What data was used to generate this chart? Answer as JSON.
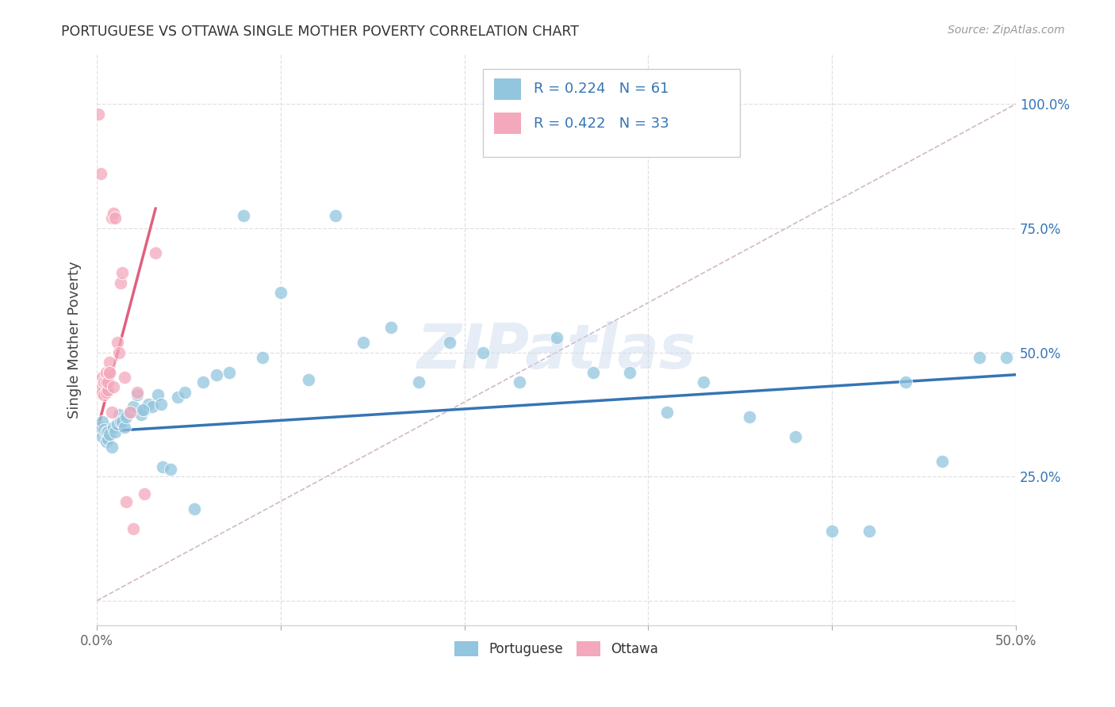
{
  "title": "PORTUGUESE VS OTTAWA SINGLE MOTHER POVERTY CORRELATION CHART",
  "source": "Source: ZipAtlas.com",
  "ylabel": "Single Mother Poverty",
  "xlim": [
    0.0,
    0.5
  ],
  "ylim": [
    -0.05,
    1.1
  ],
  "xtick_positions": [
    0.0,
    0.1,
    0.2,
    0.3,
    0.4,
    0.5
  ],
  "xticklabels": [
    "0.0%",
    "",
    "",
    "",
    "",
    "50.0%"
  ],
  "ytick_positions": [
    0.0,
    0.25,
    0.5,
    0.75,
    1.0
  ],
  "yticklabels_right": [
    "",
    "25.0%",
    "50.0%",
    "75.0%",
    "100.0%"
  ],
  "legend_line1": "R = 0.224   N = 61",
  "legend_line2": "R = 0.422   N = 33",
  "legend_label_blue": "Portuguese",
  "legend_label_pink": "Ottawa",
  "color_blue": "#92c5de",
  "color_pink": "#f4a8bc",
  "color_blue_line": "#3575b5",
  "color_pink_line": "#e0607e",
  "color_diag": "#d0b8c8",
  "color_text_blue": "#3575b5",
  "color_grid": "#e0e0e0",
  "watermark": "ZIPatlas",
  "blue_points_x": [
    0.001,
    0.002,
    0.003,
    0.003,
    0.004,
    0.005,
    0.005,
    0.006,
    0.006,
    0.007,
    0.008,
    0.009,
    0.01,
    0.011,
    0.012,
    0.013,
    0.014,
    0.015,
    0.016,
    0.018,
    0.02,
    0.022,
    0.024,
    0.026,
    0.028,
    0.03,
    0.033,
    0.036,
    0.04,
    0.044,
    0.048,
    0.053,
    0.058,
    0.065,
    0.072,
    0.08,
    0.09,
    0.1,
    0.115,
    0.13,
    0.145,
    0.16,
    0.175,
    0.192,
    0.21,
    0.23,
    0.25,
    0.27,
    0.29,
    0.31,
    0.33,
    0.355,
    0.38,
    0.4,
    0.42,
    0.44,
    0.46,
    0.48,
    0.495,
    0.025,
    0.035
  ],
  "blue_points_y": [
    0.345,
    0.35,
    0.33,
    0.36,
    0.345,
    0.34,
    0.32,
    0.34,
    0.325,
    0.335,
    0.31,
    0.35,
    0.34,
    0.355,
    0.375,
    0.36,
    0.36,
    0.35,
    0.37,
    0.38,
    0.39,
    0.415,
    0.375,
    0.385,
    0.395,
    0.39,
    0.415,
    0.27,
    0.265,
    0.41,
    0.42,
    0.185,
    0.44,
    0.455,
    0.46,
    0.775,
    0.49,
    0.62,
    0.445,
    0.775,
    0.52,
    0.55,
    0.44,
    0.52,
    0.5,
    0.44,
    0.53,
    0.46,
    0.46,
    0.38,
    0.44,
    0.37,
    0.33,
    0.14,
    0.14,
    0.44,
    0.28,
    0.49,
    0.49,
    0.385,
    0.395
  ],
  "pink_points_x": [
    0.001,
    0.001,
    0.002,
    0.002,
    0.003,
    0.003,
    0.003,
    0.004,
    0.004,
    0.005,
    0.005,
    0.005,
    0.006,
    0.006,
    0.007,
    0.007,
    0.007,
    0.008,
    0.008,
    0.009,
    0.009,
    0.01,
    0.011,
    0.012,
    0.013,
    0.014,
    0.015,
    0.016,
    0.018,
    0.02,
    0.022,
    0.026,
    0.032
  ],
  "pink_points_y": [
    0.98,
    0.42,
    0.86,
    0.42,
    0.45,
    0.43,
    0.42,
    0.44,
    0.415,
    0.42,
    0.44,
    0.46,
    0.425,
    0.44,
    0.46,
    0.48,
    0.46,
    0.38,
    0.77,
    0.78,
    0.43,
    0.77,
    0.52,
    0.5,
    0.64,
    0.66,
    0.45,
    0.2,
    0.38,
    0.145,
    0.42,
    0.215,
    0.7
  ],
  "blue_line_x": [
    0.0,
    0.5
  ],
  "blue_line_y": [
    0.34,
    0.455
  ],
  "pink_line_x": [
    0.0,
    0.032
  ],
  "pink_line_y": [
    0.34,
    0.79
  ],
  "diag_line_x": [
    0.0,
    0.5
  ],
  "diag_line_y": [
    0.0,
    1.0
  ]
}
